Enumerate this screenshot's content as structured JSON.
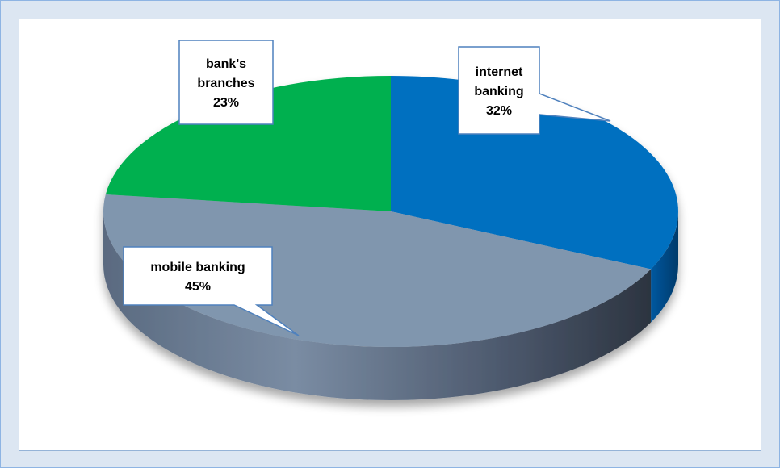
{
  "chart_data": {
    "type": "pie",
    "title": "",
    "slices": [
      {
        "label_lines": [
          "internet",
          "banking"
        ],
        "percent_label": "32%",
        "value": 32,
        "color": "#0070c0"
      },
      {
        "label_lines": [
          "mobile banking"
        ],
        "percent_label": "45%",
        "value": 45,
        "color": "#8096ae"
      },
      {
        "label_lines": [
          "bank's",
          "branches"
        ],
        "percent_label": "23%",
        "value": 23,
        "color": "#00b050"
      }
    ],
    "style": "3d-exploded-none",
    "legend": "none"
  },
  "colors": {
    "background": "#dce6f2",
    "plot_background": "#ffffff",
    "side_dark": "#3a4556",
    "side_blue": "#004a82"
  }
}
